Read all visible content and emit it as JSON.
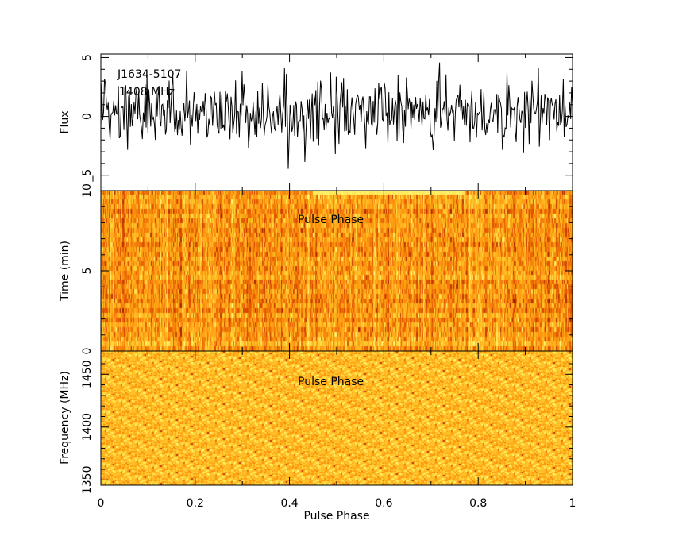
{
  "chart_data": [
    {
      "type": "line",
      "panel": "profile",
      "title_lines": [
        "J1634-5107",
        "1408 MHz"
      ],
      "ylabel": "Flux",
      "xlim": [
        0,
        1
      ],
      "ylim": [
        -6.3,
        5.3
      ],
      "yticks": [
        5,
        0,
        -5
      ],
      "ytick_labels": [
        "5",
        "0",
        "_5"
      ],
      "series": [
        {
          "name": "flux",
          "nbin": 512,
          "mean": 0.3,
          "std": 1.5,
          "seed": 17
        }
      ]
    },
    {
      "type": "heatmap",
      "panel": "time-phase",
      "label": "Pulse Phase",
      "ylabel": "Time (min)",
      "xlim": [
        0,
        1
      ],
      "ylim": [
        0,
        10
      ],
      "yticks": [
        0,
        5,
        10
      ],
      "ytick_labels": [
        "0",
        "5",
        "10"
      ],
      "nsub": 34,
      "nbin": 512,
      "seed": 5,
      "colormap": [
        "#a02000",
        "#e05000",
        "#ff9a10",
        "#ffd030",
        "#ffff80"
      ]
    },
    {
      "type": "heatmap",
      "panel": "frequency-phase",
      "label": "Pulse Phase",
      "ylabel": "Frequency (MHz)",
      "xlabel": "Pulse Phase",
      "xlim": [
        0,
        1
      ],
      "ylim": [
        1345,
        1472
      ],
      "yticks": [
        1350,
        1400,
        1450
      ],
      "ytick_labels": [
        "1350",
        "1400",
        "1450"
      ],
      "xticks": [
        0,
        0.2,
        0.4,
        0.6,
        0.8,
        1
      ],
      "xtick_labels": [
        "0",
        "0.2",
        "0.4",
        "0.6",
        "0.8",
        "1"
      ],
      "nchan": 84,
      "nbin": 300,
      "seed": 9,
      "colormap": [
        "#a02000",
        "#e05000",
        "#ff9a10",
        "#ffd030",
        "#ffff80"
      ]
    }
  ]
}
